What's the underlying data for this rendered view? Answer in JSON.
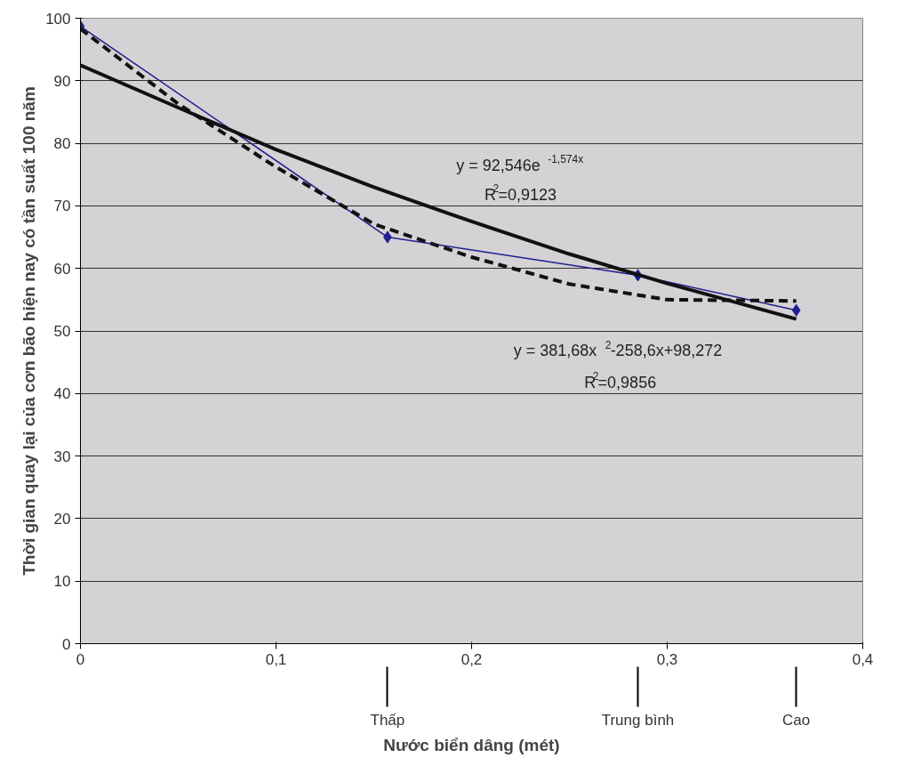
{
  "chart_data": {
    "type": "line",
    "xlabel": "Nước biển dâng (mét)",
    "ylabel": "Thời gian quay lại của cơn bão hiện nay có tần suất 100 năm",
    "xlim": [
      0,
      0.4
    ],
    "xticks": [
      0,
      {
        "value": 0.1,
        "label": "0,1"
      },
      {
        "value": 0.2,
        "label": "0,2"
      },
      {
        "value": 0.3,
        "label": "0,3"
      },
      {
        "value": 0.4,
        "label": "0,4"
      }
    ],
    "ylim": [
      0,
      100
    ],
    "yticks": [
      0,
      10,
      20,
      30,
      40,
      50,
      60,
      70,
      80,
      90,
      100
    ],
    "grid": "y",
    "series": [
      {
        "x": [
          0,
          0.157,
          0.285,
          0.366
        ],
        "values": [
          98.7,
          65.0,
          58.9,
          53.3
        ],
        "color": "#1f1f8f",
        "marker": "diamond",
        "line_style": "solid"
      },
      {
        "type": "line",
        "x": [
          0,
          0.05,
          0.1,
          0.15,
          0.2,
          0.25,
          0.3,
          0.366
        ],
        "values": [
          92.5,
          85.7,
          79.0,
          73.0,
          67.5,
          62.3,
          57.6,
          51.9
        ],
        "color": "#111111",
        "marker": "none",
        "line_style": "solid"
      },
      {
        "type": "line",
        "x": [
          0,
          0.05,
          0.1,
          0.15,
          0.2,
          0.25,
          0.3,
          0.366
        ],
        "values": [
          98.3,
          86.3,
          76.2,
          67.1,
          61.8,
          57.5,
          55.0,
          54.8
        ],
        "color": "#111111",
        "marker": "none",
        "line_style": "dashed"
      }
    ],
    "annotations": [
      "y = 92,546e$^{-1,574x}$",
      "R$^{2}$=0,9123",
      "y = 381,68x$^{2}$-258,6x+98,272",
      "R$^{2}$=0,9856",
      {
        "text": "Thấp",
        "x": 0.157
      },
      {
        "text": "Trung bình",
        "x": 0.285
      },
      {
        "text": "Cao",
        "x": 0.366
      }
    ]
  }
}
